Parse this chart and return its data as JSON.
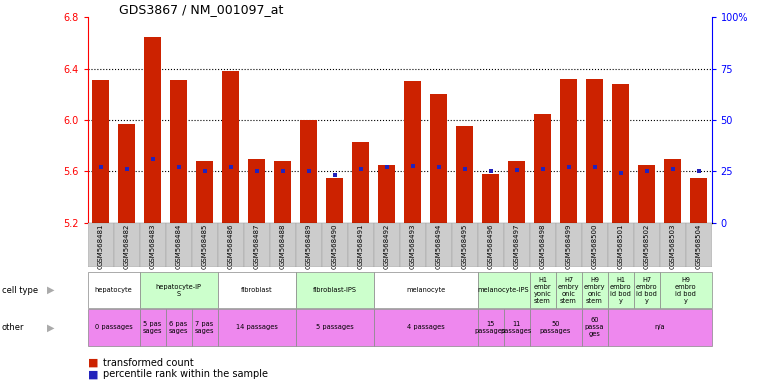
{
  "title": "GDS3867 / NM_001097_at",
  "samples": [
    "GSM568481",
    "GSM568482",
    "GSM568483",
    "GSM568484",
    "GSM568485",
    "GSM568486",
    "GSM568487",
    "GSM568488",
    "GSM568489",
    "GSM568490",
    "GSM568491",
    "GSM568492",
    "GSM568493",
    "GSM568494",
    "GSM568495",
    "GSM568496",
    "GSM568497",
    "GSM568498",
    "GSM568499",
    "GSM568500",
    "GSM568501",
    "GSM568502",
    "GSM568503",
    "GSM568504"
  ],
  "bar_values": [
    6.31,
    5.97,
    6.65,
    6.31,
    5.68,
    6.38,
    5.7,
    5.68,
    6.0,
    5.55,
    5.83,
    5.65,
    6.3,
    6.2,
    5.95,
    5.58,
    5.68,
    6.05,
    6.32,
    6.32,
    6.28,
    5.65,
    5.7,
    5.55
  ],
  "percentile_values": [
    5.635,
    5.62,
    5.7,
    5.635,
    5.6,
    5.635,
    5.6,
    5.6,
    5.6,
    5.575,
    5.62,
    5.635,
    5.645,
    5.635,
    5.62,
    5.6,
    5.61,
    5.62,
    5.635,
    5.635,
    5.59,
    5.6,
    5.615,
    5.6
  ],
  "ymin": 5.2,
  "ymax": 6.8,
  "yticks_left": [
    5.2,
    5.6,
    6.0,
    6.4,
    6.8
  ],
  "yticks_right_labels": [
    "0",
    "25",
    "50",
    "75",
    "100%"
  ],
  "bar_color": "#CC2200",
  "percentile_color": "#2222BB",
  "cell_type_groups": [
    {
      "label": "hepatocyte",
      "start": 0,
      "end": 2,
      "color": "#ffffff"
    },
    {
      "label": "hepatocyte-iP\nS",
      "start": 2,
      "end": 5,
      "color": "#ccffcc"
    },
    {
      "label": "fibroblast",
      "start": 5,
      "end": 8,
      "color": "#ffffff"
    },
    {
      "label": "fibroblast-IPS",
      "start": 8,
      "end": 11,
      "color": "#ccffcc"
    },
    {
      "label": "melanocyte",
      "start": 11,
      "end": 15,
      "color": "#ffffff"
    },
    {
      "label": "melanocyte-IPS",
      "start": 15,
      "end": 17,
      "color": "#ccffcc"
    },
    {
      "label": "H1\nembr\nyonic\nstem",
      "start": 17,
      "end": 18,
      "color": "#ccffcc"
    },
    {
      "label": "H7\nembry\nonic\nstem",
      "start": 18,
      "end": 19,
      "color": "#ccffcc"
    },
    {
      "label": "H9\nembry\nonic\nstem",
      "start": 19,
      "end": 20,
      "color": "#ccffcc"
    },
    {
      "label": "H1\nembro\nid bod\ny",
      "start": 20,
      "end": 21,
      "color": "#ccffcc"
    },
    {
      "label": "H7\nembro\nid bod\ny",
      "start": 21,
      "end": 22,
      "color": "#ccffcc"
    },
    {
      "label": "H9\nembro\nid bod\ny",
      "start": 22,
      "end": 24,
      "color": "#ccffcc"
    }
  ],
  "other_groups": [
    {
      "label": "0 passages",
      "start": 0,
      "end": 2,
      "color": "#ee88ee"
    },
    {
      "label": "5 pas\nsages",
      "start": 2,
      "end": 3,
      "color": "#ee88ee"
    },
    {
      "label": "6 pas\nsages",
      "start": 3,
      "end": 4,
      "color": "#ee88ee"
    },
    {
      "label": "7 pas\nsages",
      "start": 4,
      "end": 5,
      "color": "#ee88ee"
    },
    {
      "label": "14 passages",
      "start": 5,
      "end": 8,
      "color": "#ee88ee"
    },
    {
      "label": "5 passages",
      "start": 8,
      "end": 11,
      "color": "#ee88ee"
    },
    {
      "label": "4 passages",
      "start": 11,
      "end": 15,
      "color": "#ee88ee"
    },
    {
      "label": "15\npassages",
      "start": 15,
      "end": 16,
      "color": "#ee88ee"
    },
    {
      "label": "11\npassages",
      "start": 16,
      "end": 17,
      "color": "#ee88ee"
    },
    {
      "label": "50\npassages",
      "start": 17,
      "end": 19,
      "color": "#ee88ee"
    },
    {
      "label": "60\npassa\nges",
      "start": 19,
      "end": 20,
      "color": "#ee88ee"
    },
    {
      "label": "n/a",
      "start": 20,
      "end": 24,
      "color": "#ee88ee"
    }
  ],
  "xtick_bg_color": "#cccccc",
  "left_label_color": "#aaaaaa"
}
